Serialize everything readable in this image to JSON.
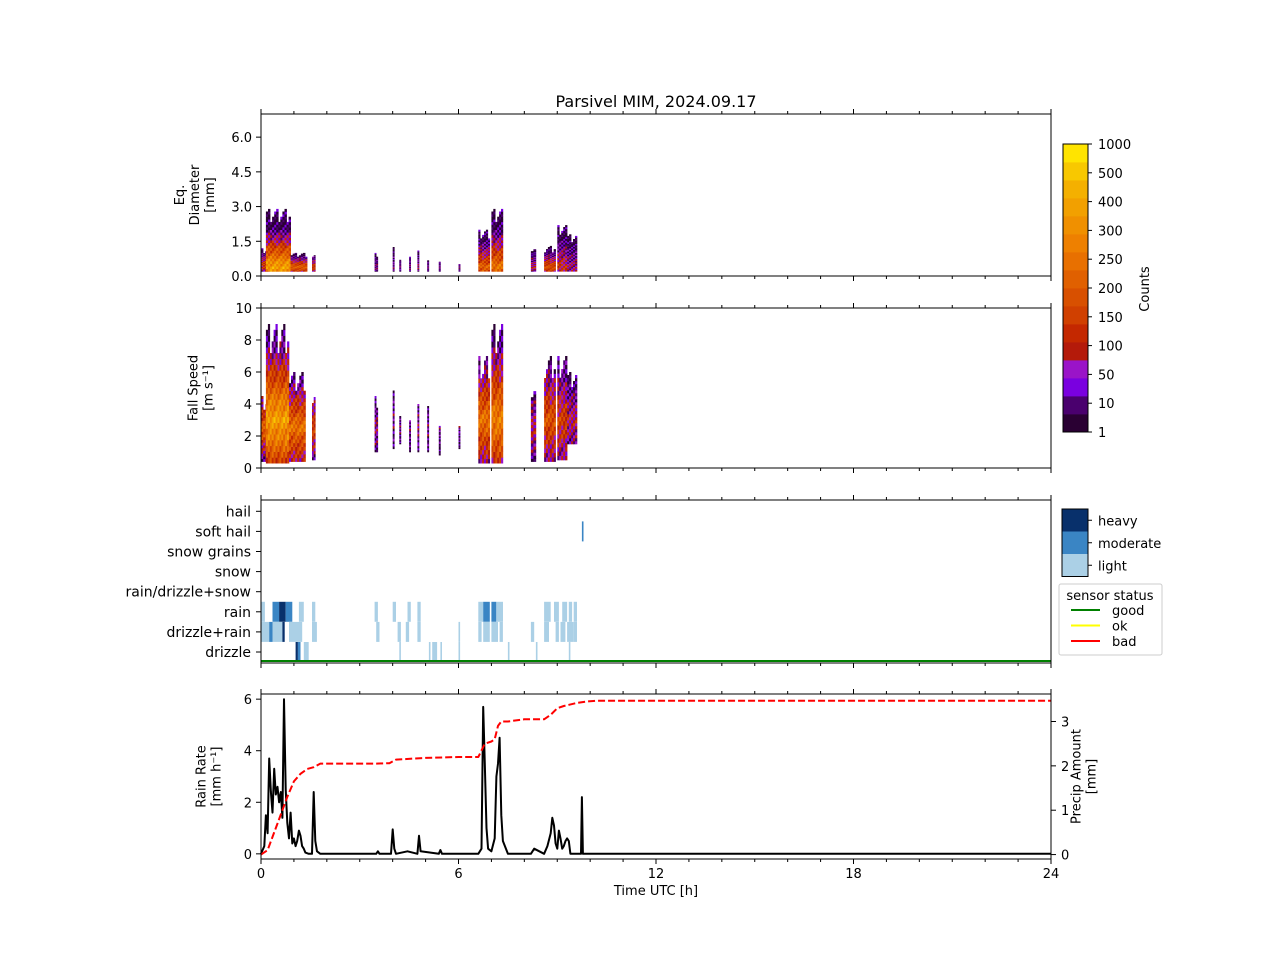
{
  "title": "Parsivel MIM, 2024.09.17",
  "xaxis": {
    "label": "Time UTC [h]",
    "range": [
      0,
      24
    ],
    "ticks": [
      "0",
      "6",
      "12",
      "18",
      "24"
    ]
  },
  "colorbar": {
    "label": "Counts",
    "tick_labels": [
      "1",
      "10",
      "50",
      "100",
      "150",
      "200",
      "250",
      "300",
      "400",
      "500",
      "1000"
    ],
    "colors": [
      "#2a0033",
      "#4a006e",
      "#7a00e0",
      "#9a14c8",
      "#b41a0a",
      "#c42800",
      "#d04000",
      "#d85000",
      "#e06000",
      "#e87000",
      "#ee8000",
      "#f09000",
      "#f2a000",
      "#f4b000",
      "#f8c800",
      "#ffe400"
    ]
  },
  "class_legend": {
    "labels": [
      "heavy",
      "moderate",
      "light"
    ],
    "colors": [
      "#08306b",
      "#3a85c4",
      "#abd0e6"
    ]
  },
  "status_legend": {
    "title": "sensor status",
    "items": [
      {
        "label": "good",
        "color": "#008000"
      },
      {
        "label": "ok",
        "color": "#ffff00"
      },
      {
        "label": "bad",
        "color": "#ff0000"
      }
    ]
  },
  "chart_data": [
    {
      "type": "heatmap",
      "ylabel": "Eq.\nDiameter\n[mm]",
      "ylim": [
        0,
        7
      ],
      "yticks": [
        "0.0",
        "1.5",
        "3.0",
        "4.5",
        "6.0"
      ],
      "ytick_values": [
        0,
        1.5,
        3.0,
        4.5,
        6.0
      ],
      "blobs": [
        {
          "t0": 0.0,
          "t1": 0.25,
          "top": 1.2,
          "peak": 0.5,
          "level": 6
        },
        {
          "t0": 0.15,
          "t1": 0.9,
          "top": 2.9,
          "peak": 0.4,
          "level": 12
        },
        {
          "t0": 0.9,
          "t1": 1.4,
          "top": 1.0,
          "peak": 0.4,
          "level": 8
        },
        {
          "t0": 1.55,
          "t1": 1.65,
          "top": 1.0,
          "peak": 0.4,
          "level": 6
        },
        {
          "t0": 3.45,
          "t1": 3.55,
          "top": 1.0,
          "peak": 0.4,
          "level": 2
        },
        {
          "t0": 4.0,
          "t1": 4.05,
          "top": 1.3,
          "peak": 0.4,
          "level": 2
        },
        {
          "t0": 4.2,
          "t1": 4.25,
          "top": 0.8,
          "peak": 0.4,
          "level": 2
        },
        {
          "t0": 4.5,
          "t1": 4.55,
          "top": 1.0,
          "peak": 0.4,
          "level": 2
        },
        {
          "t0": 4.75,
          "t1": 4.8,
          "top": 1.1,
          "peak": 0.4,
          "level": 3
        },
        {
          "t0": 5.05,
          "t1": 5.1,
          "top": 0.7,
          "peak": 0.4,
          "level": 2
        },
        {
          "t0": 5.4,
          "t1": 5.45,
          "top": 0.7,
          "peak": 0.4,
          "level": 2
        },
        {
          "t0": 6.0,
          "t1": 6.05,
          "top": 0.6,
          "peak": 0.4,
          "level": 2
        },
        {
          "t0": 6.6,
          "t1": 6.95,
          "top": 2.0,
          "peak": 0.4,
          "level": 8
        },
        {
          "t0": 7.0,
          "t1": 7.35,
          "top": 2.9,
          "peak": 0.4,
          "level": 9
        },
        {
          "t0": 8.2,
          "t1": 8.35,
          "top": 1.2,
          "peak": 0.4,
          "level": 4
        },
        {
          "t0": 8.6,
          "t1": 8.95,
          "top": 1.3,
          "peak": 0.4,
          "level": 7
        },
        {
          "t0": 9.0,
          "t1": 9.3,
          "top": 2.2,
          "peak": 0.4,
          "level": 5
        },
        {
          "t0": 9.3,
          "t1": 9.6,
          "top": 1.8,
          "peak": 0.4,
          "level": 3
        }
      ]
    },
    {
      "type": "heatmap",
      "ylabel": "Fall Speed\n[m s⁻¹]",
      "ylim": [
        0,
        10
      ],
      "yticks": [
        "0",
        "2",
        "4",
        "6",
        "8",
        "10"
      ],
      "ytick_values": [
        0,
        2,
        4,
        6,
        8,
        10
      ],
      "blobs": [
        {
          "t0": 0.0,
          "t1": 0.2,
          "bot": 0.4,
          "top": 4.5,
          "peak": 2.5,
          "level": 8
        },
        {
          "t0": 0.15,
          "t1": 0.85,
          "bot": 0.3,
          "top": 9.0,
          "peak": 3.0,
          "level": 12
        },
        {
          "t0": 0.85,
          "t1": 1.35,
          "bot": 0.4,
          "top": 6.0,
          "peak": 2.5,
          "level": 9
        },
        {
          "t0": 1.55,
          "t1": 1.65,
          "bot": 0.5,
          "top": 5.0,
          "peak": 2.5,
          "level": 6
        },
        {
          "t0": 3.45,
          "t1": 3.55,
          "bot": 1.0,
          "top": 4.5,
          "peak": 2.5,
          "level": 3
        },
        {
          "t0": 4.0,
          "t1": 4.05,
          "bot": 1.2,
          "top": 5.0,
          "peak": 3.0,
          "level": 2
        },
        {
          "t0": 4.2,
          "t1": 4.25,
          "bot": 1.5,
          "top": 3.5,
          "peak": 2.5,
          "level": 2
        },
        {
          "t0": 4.5,
          "t1": 4.55,
          "bot": 1.0,
          "top": 3.5,
          "peak": 2.5,
          "level": 2
        },
        {
          "t0": 4.75,
          "t1": 4.8,
          "bot": 1.0,
          "top": 4.0,
          "peak": 2.5,
          "level": 3
        },
        {
          "t0": 5.05,
          "t1": 5.1,
          "bot": 1.0,
          "top": 4.0,
          "peak": 2.5,
          "level": 2
        },
        {
          "t0": 5.4,
          "t1": 5.45,
          "bot": 0.8,
          "top": 3.0,
          "peak": 2.5,
          "level": 2
        },
        {
          "t0": 6.0,
          "t1": 6.05,
          "bot": 1.2,
          "top": 3.0,
          "peak": 2.5,
          "level": 2
        },
        {
          "t0": 6.6,
          "t1": 6.95,
          "bot": 0.3,
          "top": 7.0,
          "peak": 3.0,
          "level": 9
        },
        {
          "t0": 7.0,
          "t1": 7.35,
          "bot": 0.3,
          "top": 9.0,
          "peak": 3.0,
          "level": 10
        },
        {
          "t0": 8.2,
          "t1": 8.35,
          "bot": 0.4,
          "top": 5.0,
          "peak": 2.5,
          "level": 4
        },
        {
          "t0": 8.6,
          "t1": 8.95,
          "bot": 0.4,
          "top": 7.0,
          "peak": 3.0,
          "level": 7
        },
        {
          "t0": 9.0,
          "t1": 9.3,
          "bot": 0.5,
          "top": 7.0,
          "peak": 3.0,
          "level": 6
        },
        {
          "t0": 9.3,
          "t1": 9.6,
          "bot": 1.5,
          "top": 6.0,
          "peak": 3.0,
          "level": 4
        }
      ]
    },
    {
      "type": "heatmap",
      "categories": [
        "drizzle",
        "drizzle+rain",
        "rain",
        "rain/drizzle+snow",
        "snow",
        "snow grains",
        "soft hail",
        "hail"
      ],
      "cells": [
        {
          "cat": 2,
          "t0": 0.0,
          "t1": 0.12,
          "level": 2
        },
        {
          "cat": 2,
          "t0": 0.35,
          "t1": 0.55,
          "level": 1
        },
        {
          "cat": 2,
          "t0": 0.55,
          "t1": 0.75,
          "level": 0
        },
        {
          "cat": 2,
          "t0": 0.75,
          "t1": 0.95,
          "level": 1
        },
        {
          "cat": 2,
          "t0": 1.15,
          "t1": 1.3,
          "level": 2
        },
        {
          "cat": 2,
          "t0": 1.55,
          "t1": 1.65,
          "level": 2
        },
        {
          "cat": 2,
          "t0": 3.45,
          "t1": 3.55,
          "level": 2
        },
        {
          "cat": 2,
          "t0": 4.0,
          "t1": 4.1,
          "level": 2
        },
        {
          "cat": 2,
          "t0": 4.45,
          "t1": 4.55,
          "level": 2
        },
        {
          "cat": 2,
          "t0": 4.75,
          "t1": 4.85,
          "level": 2
        },
        {
          "cat": 2,
          "t0": 6.6,
          "t1": 6.75,
          "level": 2
        },
        {
          "cat": 2,
          "t0": 6.75,
          "t1": 6.95,
          "level": 1
        },
        {
          "cat": 2,
          "t0": 7.0,
          "t1": 7.15,
          "level": 1
        },
        {
          "cat": 2,
          "t0": 7.15,
          "t1": 7.35,
          "level": 2
        },
        {
          "cat": 2,
          "t0": 8.6,
          "t1": 8.8,
          "level": 2
        },
        {
          "cat": 2,
          "t0": 8.9,
          "t1": 9.05,
          "level": 2
        },
        {
          "cat": 2,
          "t0": 9.15,
          "t1": 9.3,
          "level": 2
        },
        {
          "cat": 2,
          "t0": 9.35,
          "t1": 9.45,
          "level": 2
        },
        {
          "cat": 2,
          "t0": 9.5,
          "t1": 9.6,
          "level": 2
        },
        {
          "cat": 1,
          "t0": 0.0,
          "t1": 0.25,
          "level": 2
        },
        {
          "cat": 1,
          "t0": 0.25,
          "t1": 0.35,
          "level": 1
        },
        {
          "cat": 1,
          "t0": 0.35,
          "t1": 0.65,
          "level": 2
        },
        {
          "cat": 1,
          "t0": 0.65,
          "t1": 0.72,
          "level": 0
        },
        {
          "cat": 1,
          "t0": 0.85,
          "t1": 1.25,
          "level": 2
        },
        {
          "cat": 1,
          "t0": 1.55,
          "t1": 1.7,
          "level": 2
        },
        {
          "cat": 1,
          "t0": 3.5,
          "t1": 3.6,
          "level": 2
        },
        {
          "cat": 1,
          "t0": 4.15,
          "t1": 4.25,
          "level": 2
        },
        {
          "cat": 1,
          "t0": 4.4,
          "t1": 4.5,
          "level": 2
        },
        {
          "cat": 1,
          "t0": 4.75,
          "t1": 4.85,
          "level": 2
        },
        {
          "cat": 1,
          "t0": 6.0,
          "t1": 6.05,
          "level": 2
        },
        {
          "cat": 1,
          "t0": 6.6,
          "t1": 6.7,
          "level": 2
        },
        {
          "cat": 1,
          "t0": 6.75,
          "t1": 6.95,
          "level": 2
        },
        {
          "cat": 1,
          "t0": 7.0,
          "t1": 7.2,
          "level": 2
        },
        {
          "cat": 1,
          "t0": 7.25,
          "t1": 7.35,
          "level": 2
        },
        {
          "cat": 1,
          "t0": 8.2,
          "t1": 8.3,
          "level": 2
        },
        {
          "cat": 1,
          "t0": 8.6,
          "t1": 8.75,
          "level": 2
        },
        {
          "cat": 1,
          "t0": 8.95,
          "t1": 9.05,
          "level": 2
        },
        {
          "cat": 1,
          "t0": 9.1,
          "t1": 9.25,
          "level": 2
        },
        {
          "cat": 1,
          "t0": 9.3,
          "t1": 9.5,
          "level": 2
        },
        {
          "cat": 1,
          "t0": 9.5,
          "t1": 9.6,
          "level": 2
        },
        {
          "cat": 0,
          "t0": 1.05,
          "t1": 1.12,
          "level": 0
        },
        {
          "cat": 0,
          "t0": 1.12,
          "t1": 1.2,
          "level": 1
        },
        {
          "cat": 0,
          "t0": 1.3,
          "t1": 1.45,
          "level": 2
        },
        {
          "cat": 0,
          "t0": 4.2,
          "t1": 4.25,
          "level": 2
        },
        {
          "cat": 0,
          "t0": 5.1,
          "t1": 5.15,
          "level": 2
        },
        {
          "cat": 0,
          "t0": 5.2,
          "t1": 5.35,
          "level": 2
        },
        {
          "cat": 0,
          "t0": 5.45,
          "t1": 5.5,
          "level": 2
        },
        {
          "cat": 0,
          "t0": 6.0,
          "t1": 6.05,
          "level": 2
        },
        {
          "cat": 0,
          "t0": 7.5,
          "t1": 7.55,
          "level": 2
        },
        {
          "cat": 0,
          "t0": 8.35,
          "t1": 8.4,
          "level": 2
        },
        {
          "cat": 0,
          "t0": 9.35,
          "t1": 9.4,
          "level": 2
        },
        {
          "cat": 6,
          "t0": 9.75,
          "t1": 9.8,
          "level": 1
        }
      ],
      "sensor_status_line": {
        "status": "good",
        "t0": 0,
        "t1": 24
      }
    },
    {
      "type": "line",
      "ylabel": "Rain Rate\n[mm h⁻¹]",
      "ylim": [
        -0.2,
        6.2
      ],
      "yticks": [
        "0",
        "2",
        "4",
        "6"
      ],
      "ytick_values": [
        0,
        2,
        4,
        6
      ],
      "y2label": "Precip Amount\n[mm]",
      "y2lim": [
        -0.1,
        3.62
      ],
      "y2ticks": [
        "0",
        "1",
        "2",
        "3"
      ],
      "y2tick_values": [
        0,
        1,
        2,
        3
      ],
      "series": [
        {
          "axis": "left",
          "style": "solid",
          "color": "#000000",
          "x": [
            0,
            0.1,
            0.15,
            0.2,
            0.25,
            0.3,
            0.35,
            0.4,
            0.45,
            0.5,
            0.55,
            0.6,
            0.65,
            0.7,
            0.75,
            0.8,
            0.85,
            0.9,
            0.95,
            1.0,
            1.05,
            1.1,
            1.15,
            1.2,
            1.25,
            1.3,
            1.35,
            1.45,
            1.55,
            1.6,
            1.65,
            1.7,
            1.8,
            3.5,
            3.55,
            3.6,
            3.95,
            4.0,
            4.05,
            4.1,
            4.45,
            4.75,
            4.8,
            4.85,
            5.4,
            5.45,
            5.5,
            6.6,
            6.7,
            6.75,
            6.8,
            6.85,
            6.9,
            7.0,
            7.1,
            7.15,
            7.2,
            7.25,
            7.3,
            7.35,
            7.5,
            8.2,
            8.3,
            8.6,
            8.7,
            8.8,
            8.85,
            8.9,
            8.95,
            9.0,
            9.05,
            9.1,
            9.15,
            9.2,
            9.25,
            9.3,
            9.35,
            9.4,
            9.7,
            9.72,
            9.75,
            9.78,
            9.82,
            24
          ],
          "y": [
            0,
            0.3,
            1.5,
            0.8,
            3.7,
            2.4,
            1.6,
            3.3,
            2.3,
            2.6,
            2.0,
            2.4,
            1.4,
            6.0,
            2.5,
            1.2,
            0.6,
            1.6,
            0.4,
            0.6,
            0.3,
            0.5,
            0.9,
            0.7,
            0.3,
            0.2,
            0.05,
            0,
            0,
            2.4,
            0.5,
            0.1,
            0,
            0,
            0.1,
            0,
            0,
            0.95,
            0.2,
            0,
            0.1,
            0,
            0.7,
            0.1,
            0,
            0.15,
            0,
            0,
            0.2,
            5.7,
            3.5,
            1.0,
            0.2,
            0.1,
            0.6,
            3.0,
            3.5,
            4.5,
            1.5,
            0.5,
            0,
            0,
            0.2,
            0,
            0.3,
            0.8,
            1.4,
            1.1,
            0.4,
            0.2,
            0.9,
            0.6,
            0.2,
            0.3,
            0.5,
            0.6,
            0.5,
            0,
            0,
            0,
            2.2,
            0,
            0,
            0
          ]
        },
        {
          "axis": "right",
          "style": "dashed",
          "color": "#ff0000",
          "x": [
            0,
            0.2,
            0.5,
            0.8,
            1.0,
            1.2,
            1.4,
            1.6,
            1.8,
            2.5,
            3.5,
            3.9,
            4.1,
            5.0,
            6.0,
            6.6,
            6.8,
            7.0,
            7.1,
            7.2,
            7.3,
            7.5,
            8.0,
            8.6,
            8.8,
            9.0,
            9.2,
            9.6,
            9.9,
            10.2,
            24.0
          ],
          "y": [
            0,
            0.1,
            0.7,
            1.3,
            1.65,
            1.82,
            1.93,
            1.97,
            2.05,
            2.05,
            2.05,
            2.06,
            2.14,
            2.18,
            2.2,
            2.2,
            2.5,
            2.55,
            2.6,
            2.9,
            3.0,
            3.0,
            3.05,
            3.05,
            3.15,
            3.3,
            3.35,
            3.42,
            3.45,
            3.47,
            3.47
          ]
        }
      ]
    }
  ]
}
